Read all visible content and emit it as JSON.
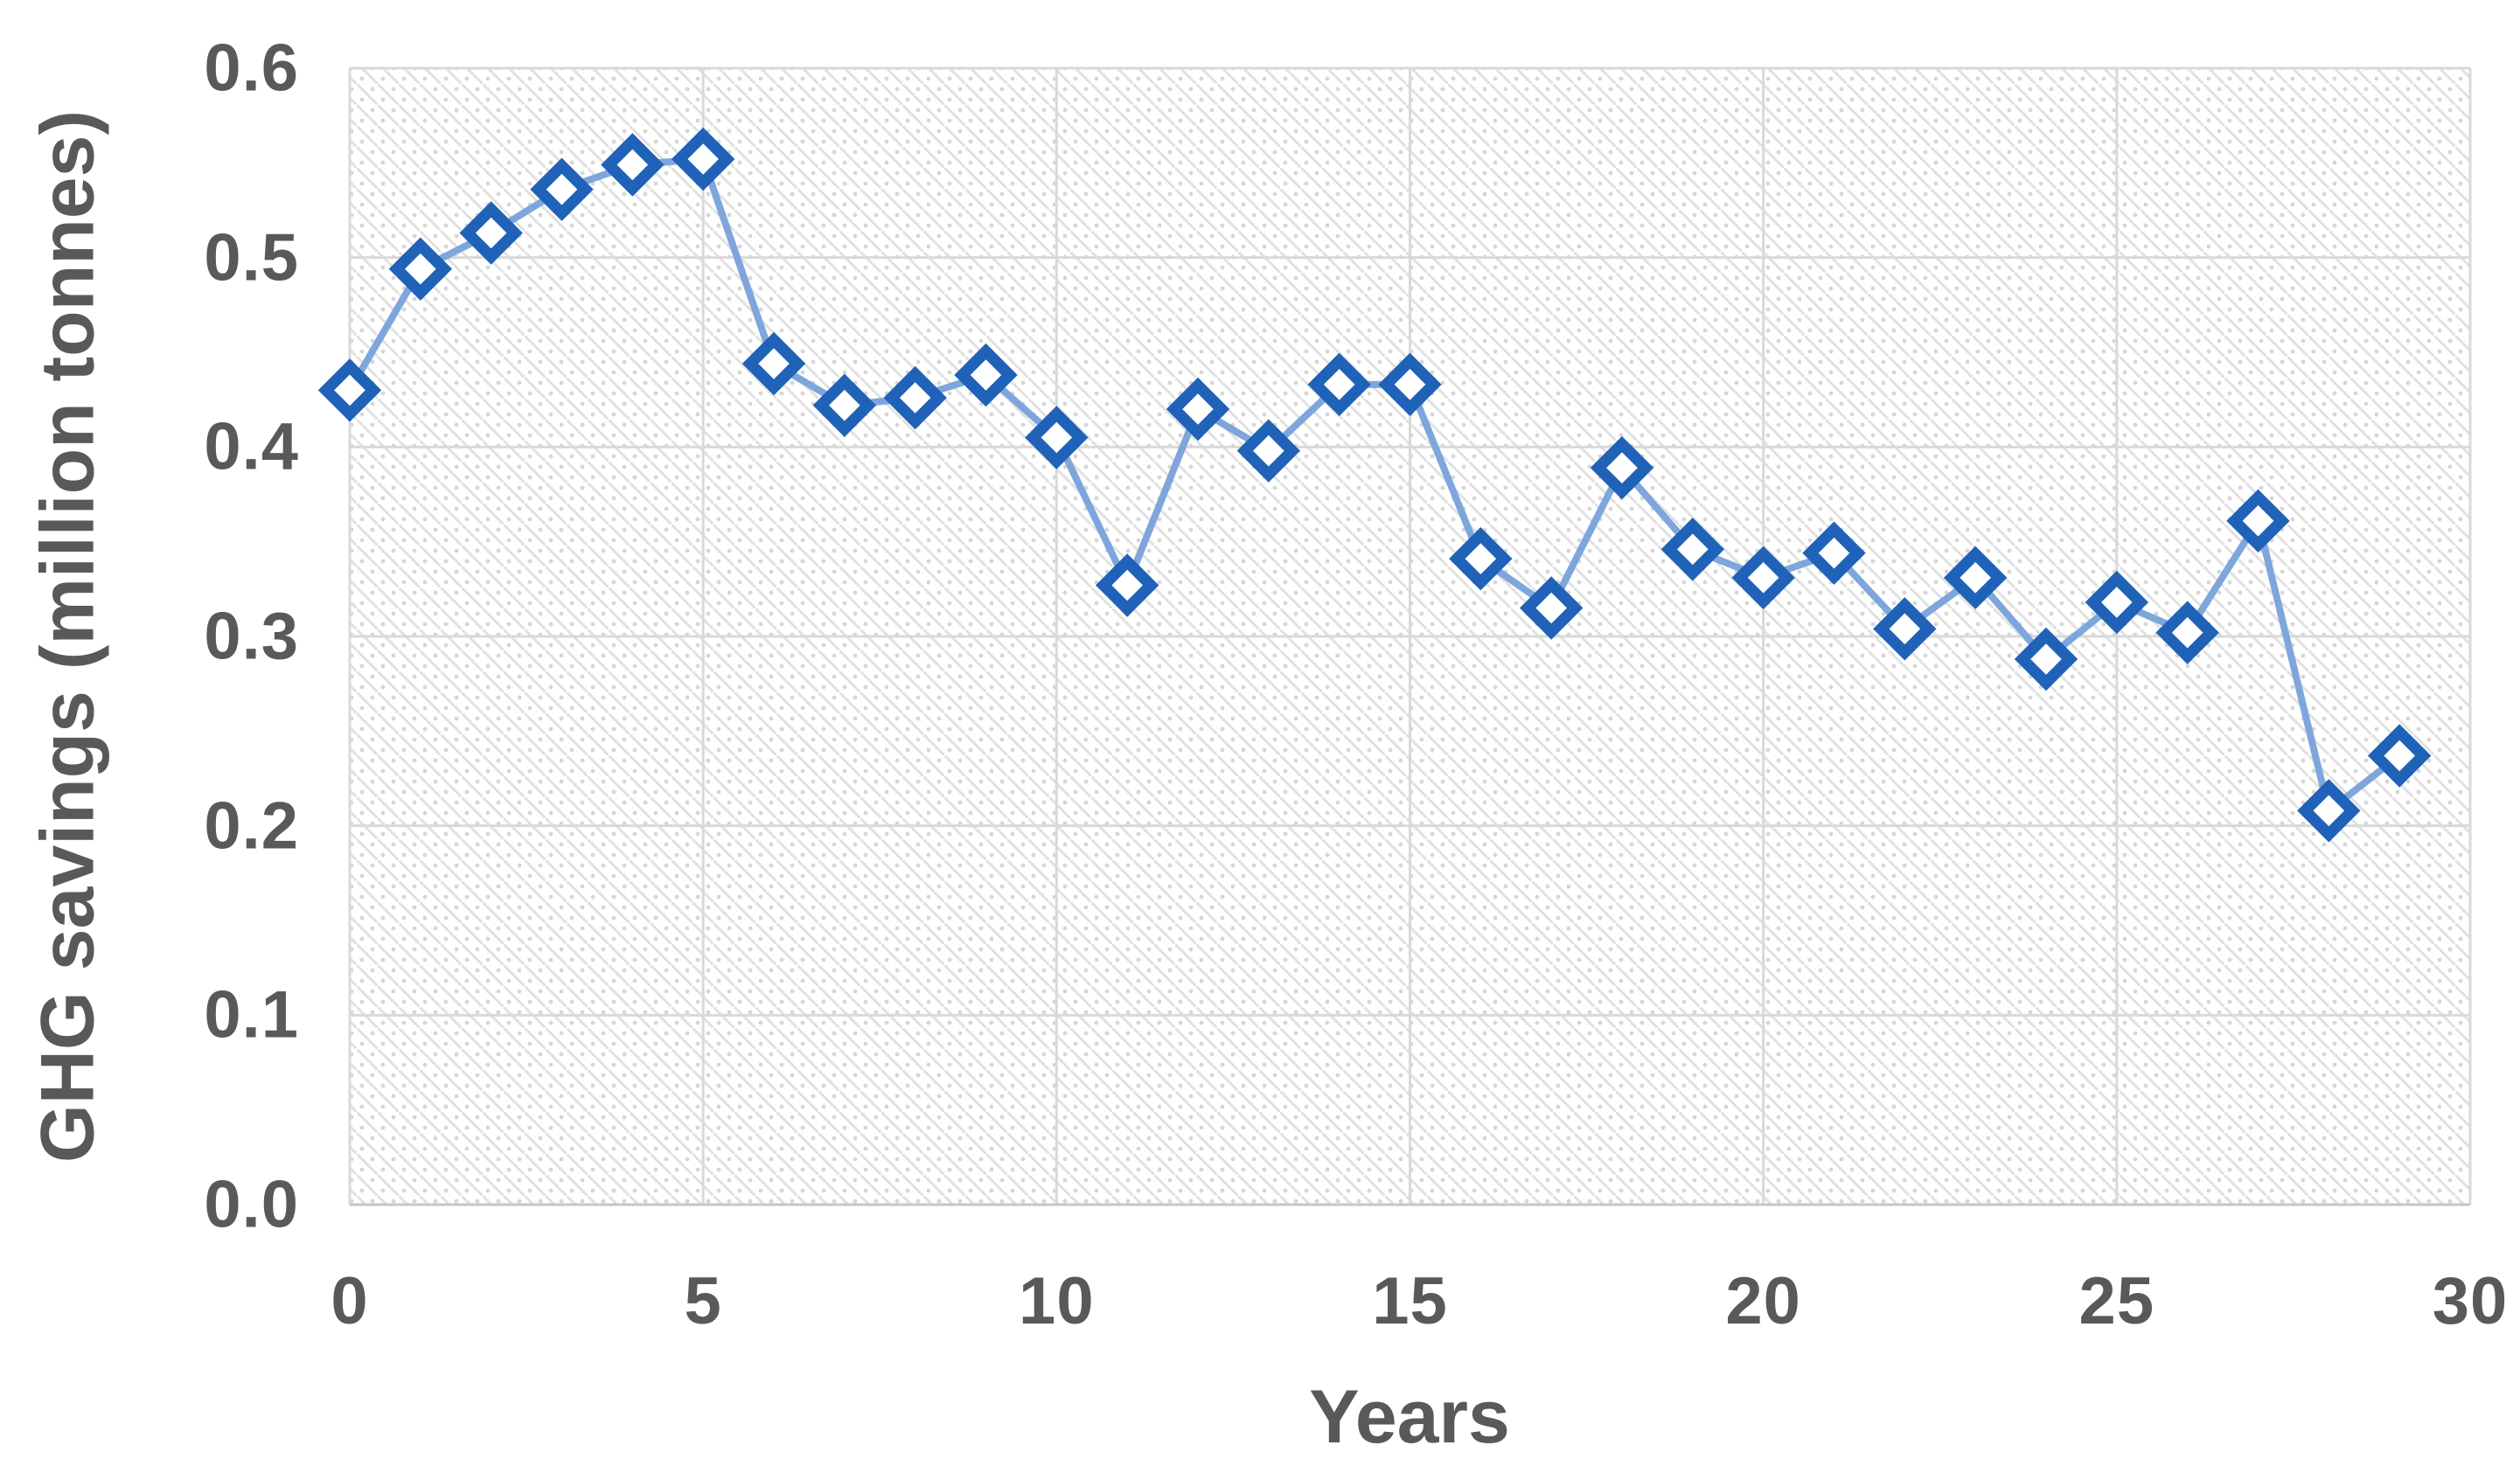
{
  "chart_data": {
    "type": "line",
    "title": "",
    "xlabel": "Years",
    "ylabel": "GHG savings (million tonnes)",
    "series": [
      {
        "name": "GHG savings",
        "x": [
          0,
          1,
          2,
          3,
          4,
          5,
          6,
          7,
          8,
          9,
          10,
          11,
          12,
          13,
          14,
          15,
          16,
          17,
          18,
          19,
          20,
          21,
          22,
          23,
          24,
          25,
          26,
          27,
          28,
          29
        ],
        "values": [
          0.43,
          0.494,
          0.513,
          0.536,
          0.549,
          0.552,
          0.444,
          0.422,
          0.426,
          0.438,
          0.405,
          0.327,
          0.42,
          0.398,
          0.433,
          0.433,
          0.341,
          0.315,
          0.389,
          0.346,
          0.331,
          0.344,
          0.304,
          0.331,
          0.288,
          0.318,
          0.302,
          0.361,
          0.208,
          0.237
        ]
      }
    ],
    "xlim": [
      0,
      30
    ],
    "ylim": [
      0.0,
      0.6
    ],
    "x_ticks": [
      0,
      5,
      10,
      15,
      20,
      25,
      30
    ],
    "x_tick_labels": [
      "0",
      "5",
      "10",
      "15",
      "20",
      "25",
      "30"
    ],
    "y_ticks": [
      0.0,
      0.1,
      0.2,
      0.3,
      0.4,
      0.5,
      0.6
    ],
    "y_tick_labels": [
      "0.0",
      "0.1",
      "0.2",
      "0.3",
      "0.4",
      "0.5",
      "0.6"
    ],
    "grid": true,
    "legend_position": "none",
    "marker": "hollow-diamond",
    "plot_area_fill": "diagonal-hatch-pattern",
    "colors": {
      "line": "#7ea6dc",
      "marker_stroke": "#1f62b8",
      "marker_fill": "#ffffff",
      "gridline": "#d9d9d9",
      "axis_line": "#c6c6c6",
      "axis_text": "#595959",
      "hatch_line": "#e1e1e1",
      "hatch_dot": "#d6d6d6",
      "background": "#ffffff"
    }
  }
}
